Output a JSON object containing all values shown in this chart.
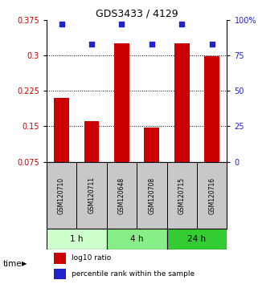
{
  "title": "GDS3433 / 4129",
  "samples": [
    "GSM120710",
    "GSM120711",
    "GSM120648",
    "GSM120708",
    "GSM120715",
    "GSM120716"
  ],
  "log10_ratio": [
    0.21,
    0.16,
    0.325,
    0.148,
    0.325,
    0.298
  ],
  "percentile_rank": [
    97,
    83,
    97,
    83,
    97,
    83
  ],
  "ylim_left": [
    0.075,
    0.375
  ],
  "yticks_left": [
    0.075,
    0.15,
    0.225,
    0.3,
    0.375
  ],
  "yticks_right": [
    0,
    25,
    50,
    75,
    100
  ],
  "bar_color": "#cc0000",
  "dot_color": "#2222cc",
  "groups": [
    {
      "label": "1 h",
      "indices": [
        0,
        1
      ],
      "color": "#ccffcc"
    },
    {
      "label": "4 h",
      "indices": [
        2,
        3
      ],
      "color": "#88ee88"
    },
    {
      "label": "24 h",
      "indices": [
        4,
        5
      ],
      "color": "#33cc33"
    }
  ],
  "time_label": "time",
  "legend_bar_label": "log10 ratio",
  "legend_dot_label": "percentile rank within the sample",
  "background_color": "#ffffff",
  "label_area_color": "#c8c8c8",
  "grid_lines": [
    0.15,
    0.225,
    0.3
  ]
}
